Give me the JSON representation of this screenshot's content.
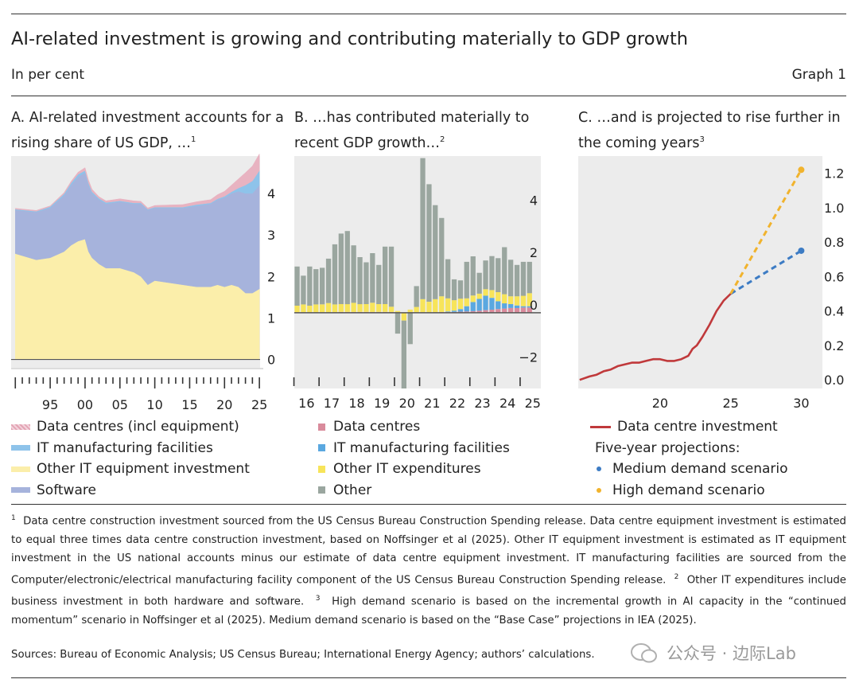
{
  "header": {
    "title": "AI-related investment is growing and contributing materially to GDP growth",
    "unit": "In per cent",
    "graph_number": "Graph 1"
  },
  "panels": {
    "a": {
      "title": "A. AI-related investment accounts for a rising share of US GDP, …",
      "sup": "1"
    },
    "b": {
      "title": "B. …has contributed materially to recent GDP growth…",
      "sup": "2"
    },
    "c": {
      "title": "C. …and is projected to rise further in the coming years",
      "sup": "3"
    }
  },
  "legends": {
    "a": [
      {
        "label": "Data centres (incl equipment)",
        "color": "#e8b3c1"
      },
      {
        "label": "IT manufacturing facilities",
        "color": "#8ec3ea"
      },
      {
        "label": "Other IT equipment investment",
        "color": "#fbeeaa"
      },
      {
        "label": "Software",
        "color": "#a6b3dc"
      }
    ],
    "b": [
      {
        "label": "Data centres",
        "color": "#d98b9c"
      },
      {
        "label": "IT manufacturing facilities",
        "color": "#5aa8e0"
      },
      {
        "label": "Other IT expenditures",
        "color": "#f7e45a"
      },
      {
        "label": "Other",
        "color": "#9aa69f"
      }
    ],
    "c": {
      "line_label": "Data centre investment",
      "line_color": "#c0393b",
      "projections_heading": "Five-year projections:",
      "scenarios": [
        {
          "label": "Medium demand scenario",
          "color": "#3d7cc4"
        },
        {
          "label": "High demand scenario",
          "color": "#f1b32d"
        }
      ]
    }
  },
  "chart_data": [
    {
      "type": "area",
      "id": "panel-a",
      "title": "A. AI-related investment accounts for a rising share of US GDP, …",
      "stacked": true,
      "x": [
        1990,
        1993,
        1995,
        1997,
        1998,
        1999,
        2000,
        2000.5,
        2001,
        2002,
        2003,
        2005,
        2007,
        2008,
        2009,
        2010,
        2012,
        2014,
        2016,
        2018,
        2019,
        2020,
        2021,
        2022,
        2023,
        2024,
        2025
      ],
      "series": [
        {
          "name": "Data centres (incl equipment)",
          "values": [
            0.02,
            0.02,
            0.02,
            0.03,
            0.04,
            0.05,
            0.07,
            0.07,
            0.06,
            0.04,
            0.04,
            0.05,
            0.05,
            0.04,
            0.03,
            0.04,
            0.05,
            0.06,
            0.07,
            0.08,
            0.1,
            0.12,
            0.16,
            0.22,
            0.3,
            0.36,
            0.4
          ]
        },
        {
          "name": "IT manufacturing facilities",
          "values": [
            0.02,
            0.02,
            0.03,
            0.04,
            0.05,
            0.06,
            0.05,
            0.05,
            0.04,
            0.03,
            0.03,
            0.02,
            0.02,
            0.02,
            0.02,
            0.02,
            0.02,
            0.02,
            0.03,
            0.02,
            0.02,
            0.03,
            0.04,
            0.08,
            0.2,
            0.3,
            0.35
          ]
        },
        {
          "name": "Other IT equipment investment",
          "values": [
            2.55,
            2.4,
            2.45,
            2.6,
            2.75,
            2.85,
            2.9,
            2.6,
            2.45,
            2.3,
            2.2,
            2.2,
            2.1,
            2.0,
            1.8,
            1.9,
            1.85,
            1.8,
            1.75,
            1.75,
            1.8,
            1.75,
            1.8,
            1.75,
            1.6,
            1.6,
            1.7
          ]
        },
        {
          "name": "Software",
          "values": [
            1.05,
            1.15,
            1.2,
            1.35,
            1.45,
            1.55,
            1.6,
            1.6,
            1.55,
            1.55,
            1.55,
            1.6,
            1.65,
            1.75,
            1.8,
            1.75,
            1.8,
            1.85,
            1.95,
            2.0,
            2.05,
            2.15,
            2.2,
            2.3,
            2.4,
            2.4,
            2.5
          ]
        }
      ],
      "x_ticks": [
        "95",
        "00",
        "05",
        "10",
        "15",
        "20",
        "25"
      ],
      "y_ticks": [
        0,
        1,
        2,
        3,
        4
      ],
      "ylim": [
        -0.2,
        4.9
      ],
      "y_axis": "right"
    },
    {
      "type": "bar",
      "id": "panel-b",
      "title": "B. …has contributed materially to recent GDP growth…",
      "stacked": true,
      "categories": [
        "16Q1",
        "16Q2",
        "16Q3",
        "16Q4",
        "17Q1",
        "17Q2",
        "17Q3",
        "17Q4",
        "18Q1",
        "18Q2",
        "18Q3",
        "18Q4",
        "19Q1",
        "19Q2",
        "19Q3",
        "19Q4",
        "20Q1",
        "20Q2",
        "20Q3",
        "20Q4",
        "21Q1",
        "21Q2",
        "21Q3",
        "21Q4",
        "22Q1",
        "22Q2",
        "22Q3",
        "22Q4",
        "23Q1",
        "23Q2",
        "23Q3",
        "23Q4",
        "24Q1",
        "24Q2",
        "24Q3",
        "24Q4",
        "25Q1",
        "25Q2"
      ],
      "series": [
        {
          "name": "Data centres",
          "values": [
            0.02,
            0.02,
            0.02,
            0.02,
            0.02,
            0.02,
            0.02,
            0.03,
            0.03,
            0.03,
            0.03,
            0.03,
            0.03,
            0.03,
            0.03,
            0.03,
            0.02,
            0.01,
            0.02,
            0.02,
            0.02,
            0.02,
            0.02,
            0.03,
            0.03,
            0.03,
            0.04,
            0.05,
            0.06,
            0.08,
            0.1,
            0.12,
            0.14,
            0.16,
            0.18,
            0.18,
            0.2,
            0.2
          ]
        },
        {
          "name": "IT manufacturing facilities",
          "values": [
            0,
            0,
            0,
            0,
            0,
            0,
            0,
            0,
            0,
            0,
            0,
            0,
            0,
            0,
            0,
            0,
            0,
            0,
            0,
            0,
            0,
            0,
            0,
            0,
            0.02,
            0.05,
            0.1,
            0.2,
            0.35,
            0.45,
            0.55,
            0.45,
            0.3,
            0.2,
            0.15,
            0.1,
            0.05,
            0.05
          ]
        },
        {
          "name": "Other IT expenditures",
          "values": [
            0.25,
            0.3,
            0.25,
            0.3,
            0.3,
            0.35,
            0.3,
            0.3,
            0.3,
            0.35,
            0.3,
            0.3,
            0.35,
            0.3,
            0.3,
            0.2,
            0.05,
            -0.3,
            0.1,
            0.2,
            0.5,
            0.4,
            0.5,
            0.6,
            0.5,
            0.4,
            0.4,
            0.3,
            0.25,
            0.2,
            0.25,
            0.3,
            0.35,
            0.35,
            0.3,
            0.35,
            0.4,
            0.5
          ]
        },
        {
          "name": "Other",
          "values": [
            1.5,
            1.1,
            1.5,
            1.35,
            1.4,
            1.7,
            2.3,
            2.7,
            2.8,
            2.2,
            1.8,
            1.6,
            1.9,
            1.5,
            2.2,
            2.3,
            -0.8,
            -2.6,
            -1.2,
            0.8,
            5.4,
            4.5,
            3.6,
            3.0,
            1.5,
            0.8,
            0.7,
            1.4,
            1.5,
            0.8,
            1.1,
            1.3,
            1.3,
            1.8,
            1.4,
            1.2,
            1.3,
            1.2
          ]
        }
      ],
      "x_ticks": [
        "16",
        "17",
        "18",
        "19",
        "20",
        "21",
        "22",
        "23",
        "24",
        "25"
      ],
      "y_ticks": [
        -2,
        0,
        2,
        4
      ],
      "ylim": [
        -2.9,
        6.0
      ],
      "y_axis": "right"
    },
    {
      "type": "line",
      "id": "panel-c",
      "title": "C. …and is projected to rise further in the coming years",
      "series": [
        {
          "name": "Data centre investment",
          "x": [
            2014.3,
            2015,
            2015.5,
            2016,
            2016.5,
            2017,
            2017.5,
            2018,
            2018.5,
            2019,
            2019.5,
            2020,
            2020.5,
            2021,
            2021.5,
            2022,
            2022.3,
            2022.6,
            2023,
            2023.5,
            2024,
            2024.5,
            2025
          ],
          "y": [
            0.0,
            0.02,
            0.03,
            0.05,
            0.06,
            0.08,
            0.09,
            0.1,
            0.1,
            0.11,
            0.12,
            0.12,
            0.11,
            0.11,
            0.12,
            0.14,
            0.18,
            0.2,
            0.25,
            0.32,
            0.4,
            0.46,
            0.5
          ]
        },
        {
          "name": "Medium demand scenario",
          "x": [
            2025,
            2030
          ],
          "y": [
            0.5,
            0.75
          ]
        },
        {
          "name": "High demand scenario",
          "x": [
            2025,
            2030
          ],
          "y": [
            0.5,
            1.22
          ]
        }
      ],
      "x_ticks": [
        "20",
        "25",
        "30"
      ],
      "y_ticks": [
        0.0,
        0.2,
        0.4,
        0.6,
        0.8,
        1.0,
        1.2
      ],
      "xlim": [
        2014.2,
        2031.5
      ],
      "ylim": [
        -0.05,
        1.3
      ],
      "y_axis": "right"
    }
  ],
  "notes": {
    "n1_sup": "1",
    "n1": "Data centre construction investment sourced from the US Census Bureau Construction Spending release. Data centre equipment investment is estimated to equal three times data centre construction investment, based on Noffsinger et al (2025). Other IT equipment investment is estimated as IT equipment investment in the US national accounts minus our estimate of data centre equipment investment. IT manufacturing facilities are sourced from the Computer/electronic/electrical manufacturing facility component of the US Census Bureau Construction Spending release.",
    "n2_sup": "2",
    "n2": "Other IT expenditures include business investment in both hardware and software.",
    "n3_sup": "3",
    "n3": "High demand scenario is based on the incremental growth in AI capacity in the “continued momentum” scenario in Noffsinger et al (2025). Medium demand scenario is based on the “Base Case” projections in IEA (2025).",
    "sources": "Sources: Bureau of Economic Analysis; US Census Bureau; International Energy Agency; authors’ calculations."
  },
  "watermark": "公众号 · 边际Lab"
}
